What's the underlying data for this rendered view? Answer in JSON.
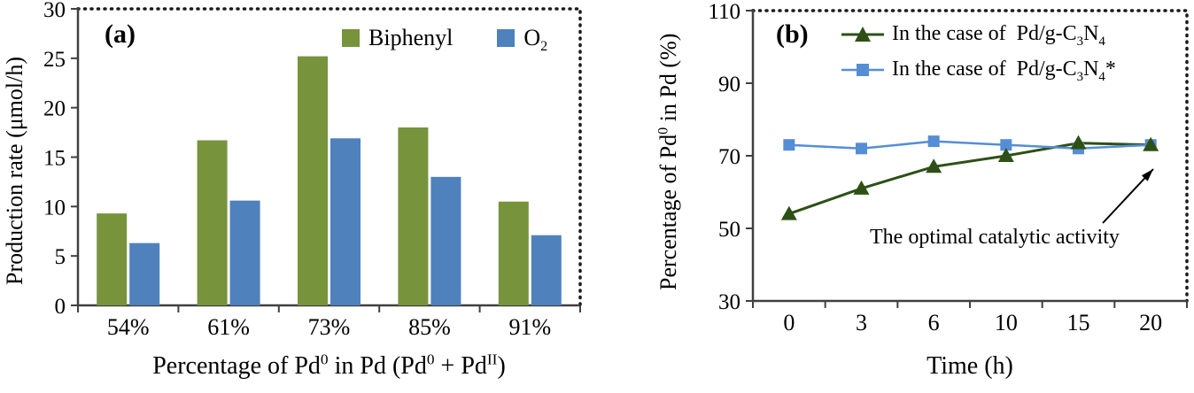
{
  "chart_data": [
    {
      "type": "bar",
      "panel_label": "(a)",
      "categories": [
        "54%",
        "61%",
        "73%",
        "85%",
        "91%"
      ],
      "series": [
        {
          "name": "Biphenyl",
          "color": "#77933C",
          "values": [
            9.3,
            16.7,
            25.2,
            18.0,
            10.5
          ]
        },
        {
          "name": "O2",
          "name_rich": [
            {
              "t": "O"
            },
            {
              "t": "2",
              "sub": true
            }
          ],
          "color": "#4F81BD",
          "values": [
            6.3,
            10.6,
            16.9,
            13.0,
            7.1
          ]
        }
      ],
      "ylabel": "Production rate (μmol/h)",
      "xlabel_rich": [
        {
          "t": "Percentage of Pd"
        },
        {
          "t": "0",
          "sup": true
        },
        {
          "t": " in Pd (Pd"
        },
        {
          "t": "0",
          "sup": true
        },
        {
          "t": " + Pd"
        },
        {
          "t": "II",
          "sup": true
        },
        {
          "t": ")"
        }
      ],
      "ylim": [
        0,
        30
      ],
      "yticks": [
        0,
        5,
        10,
        15,
        20,
        25,
        30
      ],
      "grid": false,
      "legend_position": "top-inside",
      "border_style": "dotted-top-right"
    },
    {
      "type": "line",
      "panel_label": "(b)",
      "x": [
        0,
        3,
        6,
        10,
        15,
        20
      ],
      "x_tick_labels": [
        "0",
        "3",
        "6",
        "10",
        "15",
        "20"
      ],
      "series": [
        {
          "name": "In the case of Pd/g-C3N4",
          "name_rich": [
            {
              "t": "In the case of  Pd/g-C"
            },
            {
              "t": "3",
              "sub": true
            },
            {
              "t": "N"
            },
            {
              "t": "4",
              "sub": true
            }
          ],
          "color": "#2D5016",
          "marker": "triangle",
          "values": [
            54,
            61,
            67,
            70,
            73.5,
            73
          ]
        },
        {
          "name": "In the case of Pd/g-C3N4*",
          "name_rich": [
            {
              "t": "In the case of  Pd/g-C"
            },
            {
              "t": "3",
              "sub": true
            },
            {
              "t": "N"
            },
            {
              "t": "4",
              "sub": true
            },
            {
              "t": "*"
            }
          ],
          "color": "#558ED5",
          "marker": "square",
          "values": [
            73,
            72,
            74,
            73,
            72,
            73
          ]
        }
      ],
      "ylabel_rich": [
        {
          "t": "Percentage of Pd"
        },
        {
          "t": "0",
          "sup": true
        },
        {
          "t": " in Pd (%)"
        }
      ],
      "xlabel": "Time (h)",
      "ylim": [
        30,
        110
      ],
      "yticks": [
        30,
        50,
        70,
        90,
        110
      ],
      "grid": false,
      "legend_position": "top-inside",
      "annotation": {
        "text": "The optimal catalytic activity"
      },
      "border_style": "dotted-top-right"
    }
  ]
}
